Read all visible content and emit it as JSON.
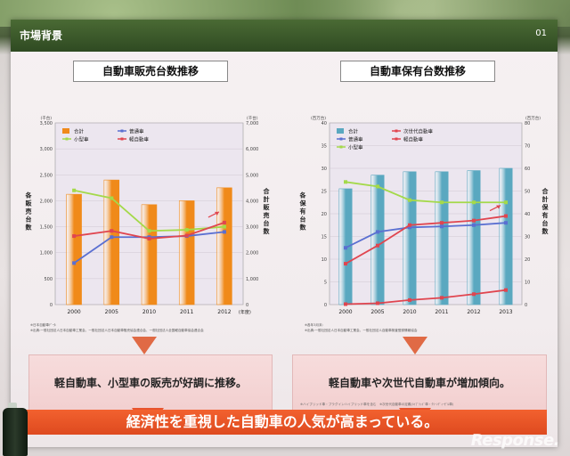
{
  "header": {
    "title": "市場背景",
    "page": "01"
  },
  "panels": [
    {
      "title": "自動車販売台数推移",
      "callout": "軽自動車、小型車の販売が好調に推移。",
      "footnotes": [
        "※日本自動車ﾃﾞｰﾀ:",
        "※出典:一般社団法人日本自動車工業会、一般社団法人日本自動車販売協会連合会、一般社団法人全国軽自動車協会連合会"
      ]
    },
    {
      "title": "自動車保有台数推移",
      "callout": "軽自動車や次世代自動車が増加傾向。",
      "callout_note": "※ハイブリッド車・プラグインハイブリッド車を含む　※次世代自動車の定義(ﾊｲﾌﾞﾘｯﾄﾞ車・ｸﾘｰﾝﾃﾞｨｰｾﾞﾙ車)",
      "footnotes": [
        "※各年3月末:",
        "※出典:一般社団法人日本自動車工業会、一般社団法人自動車検査登録情報協会"
      ]
    }
  ],
  "banner": "経済性を重視した自動車の人気が高まっている。",
  "watermark": "Response.",
  "chart_data": [
    {
      "type": "bar",
      "title": "自動車販売台数推移",
      "categories": [
        "2000",
        "2005",
        "2010",
        "2011",
        "2012"
      ],
      "x_suffix_last": "(年度)",
      "left_unit": "(千台)",
      "right_unit": "(千台)",
      "ylabel_left": "各販売台数",
      "ylabel_right": "合計販売台数",
      "ylim_left": [
        0,
        3500
      ],
      "ylim_right": [
        0,
        7000
      ],
      "yticks_left": [
        0,
        500,
        1000,
        1500,
        2000,
        2500,
        3000,
        3500
      ],
      "yticks_right": [
        0,
        1000,
        2000,
        3000,
        4000,
        5000,
        6000,
        7000
      ],
      "bar_series": {
        "name": "合計",
        "axis": "right",
        "values": [
          4250,
          4800,
          3850,
          4000,
          4500
        ],
        "color": "#f08a1a"
      },
      "line_series": [
        {
          "name": "普通車",
          "axis": "left",
          "values": [
            800,
            1300,
            1300,
            1320,
            1400
          ],
          "color": "#5a6fd1"
        },
        {
          "name": "小型車",
          "axis": "left",
          "values": [
            2200,
            2050,
            1420,
            1440,
            1500
          ],
          "color": "#a4d94a"
        },
        {
          "name": "軽自動車",
          "axis": "left",
          "values": [
            1320,
            1420,
            1270,
            1330,
            1580
          ],
          "color": "#e0454f"
        }
      ],
      "grid": true,
      "legend": "top-left"
    },
    {
      "type": "bar",
      "title": "自動車保有台数推移",
      "categories": [
        "2000",
        "2005",
        "2010",
        "2011",
        "2012",
        "2013"
      ],
      "left_unit": "(百万台)",
      "right_unit": "(百万台)",
      "ylabel_left": "各保有台数",
      "ylabel_right": "合計保有台数",
      "ylim_left": [
        0,
        40
      ],
      "ylim_right": [
        0,
        80
      ],
      "yticks_left": [
        0,
        5,
        10,
        15,
        20,
        25,
        30,
        35,
        40
      ],
      "yticks_right": [
        0,
        10,
        20,
        30,
        40,
        50,
        60,
        70,
        80
      ],
      "bar_series": {
        "name": "合計",
        "axis": "right",
        "values": [
          51,
          57,
          58.5,
          58.5,
          59,
          60
        ],
        "color": "#5aa8c0"
      },
      "line_series": [
        {
          "name": "次世代自動車",
          "axis": "left",
          "values": [
            0.1,
            0.3,
            1,
            1.5,
            2.3,
            3.2
          ],
          "color": "#e0454f"
        },
        {
          "name": "普通車",
          "axis": "left",
          "values": [
            12.5,
            16,
            17,
            17.2,
            17.5,
            18
          ],
          "color": "#5a6fd1"
        },
        {
          "name": "軽自動車",
          "axis": "left",
          "values": [
            9,
            13,
            17.5,
            18,
            18.5,
            19.5
          ],
          "color": "#e0454f"
        },
        {
          "name": "小型車",
          "axis": "left",
          "values": [
            27,
            26,
            23,
            22.5,
            22.5,
            22.5
          ],
          "color": "#a4d94a"
        }
      ],
      "grid": true,
      "legend": "top-left"
    }
  ]
}
